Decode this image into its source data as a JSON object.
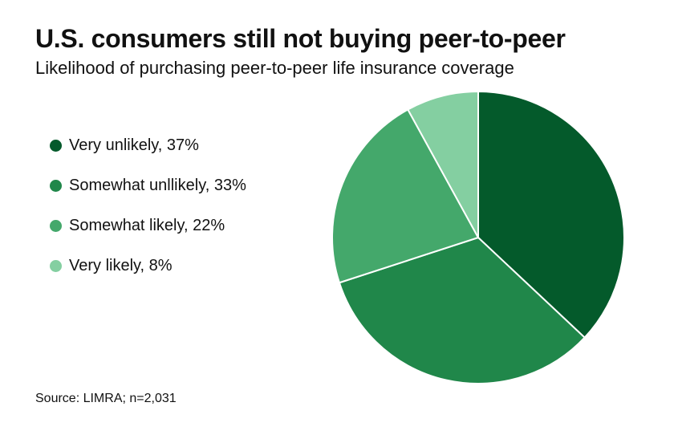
{
  "header": {
    "title": "U.S. consumers still not buying peer-to-peer",
    "subtitle": "Likelihood of purchasing peer-to-peer life insurance coverage"
  },
  "footer": {
    "source": "Source: LIMRA; n=2,031"
  },
  "chart_data": {
    "type": "pie",
    "title": "U.S. consumers still not buying peer-to-peer",
    "subtitle": "Likelihood of purchasing peer-to-peer life insurance coverage",
    "legend_position": "left",
    "slices": [
      {
        "label": "Very unlikely, 37%",
        "value": 37,
        "color": "#045a2b"
      },
      {
        "label": "Somewhat unllikely, 33%",
        "value": 33,
        "color": "#20874a"
      },
      {
        "label": "Somewhat likely, 22%",
        "value": 22,
        "color": "#44a86b"
      },
      {
        "label": "Very likely, 8%",
        "value": 8,
        "color": "#84cfa1"
      }
    ]
  }
}
